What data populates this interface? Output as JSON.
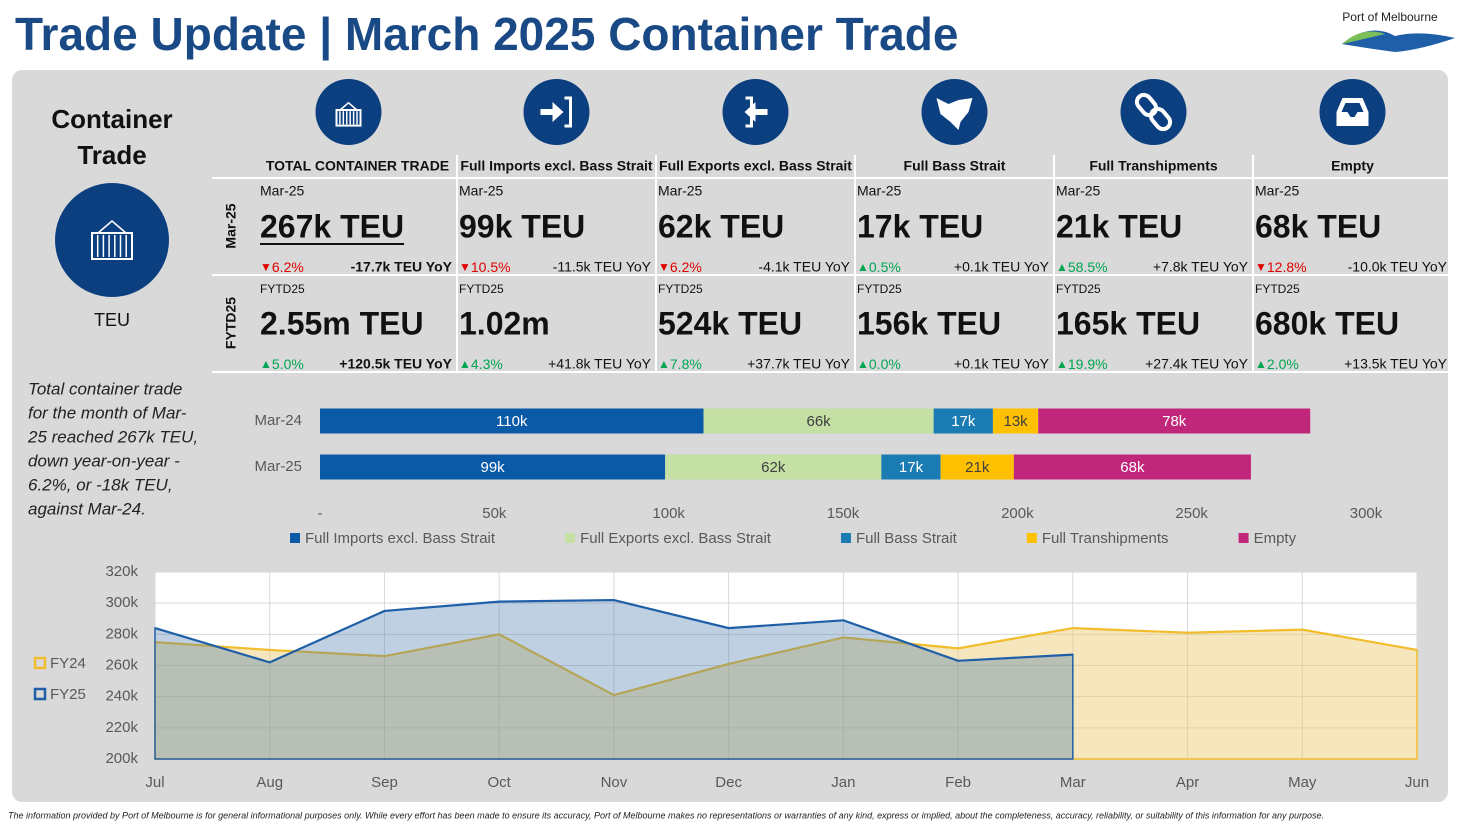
{
  "header": {
    "title": "Trade Update | March 2025 Container Trade",
    "logo": "Port of Melbourne"
  },
  "side": {
    "title_lines": [
      "Container",
      "Trade"
    ],
    "unit": "TEU"
  },
  "row_labels": [
    "Mar-25",
    "FYTD25"
  ],
  "kpis": [
    {
      "title": "TOTAL CONTAINER TRADE",
      "month": {
        "period": "Mar-25",
        "value": "267k TEU",
        "arrow": "▼",
        "change": "6.2%",
        "color": "#e00000",
        "yoy": "-17.7k TEU YoY"
      },
      "ytd": {
        "period": "FYTD25",
        "value": "2.55m TEU",
        "arrow": "▲",
        "change": "5.0%",
        "color": "#00a651",
        "yoy": "+120.5k TEU YoY"
      }
    },
    {
      "title": "Full Imports excl. Bass Strait",
      "month": {
        "period": "Mar-25",
        "value": "99k TEU",
        "arrow": "▼",
        "change": "10.5%",
        "color": "#e00000",
        "yoy": "-11.5k TEU YoY"
      },
      "ytd": {
        "period": "FYTD25",
        "value": "1.02m",
        "arrow": "▲",
        "change": "4.3%",
        "color": "#00a651",
        "yoy": "+41.8k TEU YoY"
      }
    },
    {
      "title": "Full Exports excl. Bass Strait",
      "month": {
        "period": "Mar-25",
        "value": "62k TEU",
        "arrow": "▼",
        "change": "6.2%",
        "color": "#e00000",
        "yoy": "-4.1k TEU YoY"
      },
      "ytd": {
        "period": "FYTD25",
        "value": "524k TEU",
        "arrow": "▲",
        "change": "7.8%",
        "color": "#00a651",
        "yoy": "+37.7k TEU YoY"
      }
    },
    {
      "title": "Full Bass Strait",
      "month": {
        "period": "Mar-25",
        "value": "17k TEU",
        "arrow": "▲",
        "change": "0.5%",
        "color": "#00a651",
        "yoy": "+0.1k TEU YoY"
      },
      "ytd": {
        "period": "FYTD25",
        "value": "156k TEU",
        "arrow": "▲",
        "change": "0.0%",
        "color": "#00a651",
        "yoy": "+0.1k TEU YoY"
      }
    },
    {
      "title": "Full Transhipments",
      "month": {
        "period": "Mar-25",
        "value": "21k TEU",
        "arrow": "▲",
        "change": "58.5%",
        "color": "#00a651",
        "yoy": "+7.8k TEU YoY"
      },
      "ytd": {
        "period": "FYTD25",
        "value": "165k TEU",
        "arrow": "▲",
        "change": "19.9%",
        "color": "#00a651",
        "yoy": "+27.4k TEU YoY"
      }
    },
    {
      "title": "Empty",
      "month": {
        "period": "Mar-25",
        "value": "68k TEU",
        "arrow": "▼",
        "change": "12.8%",
        "color": "#e00000",
        "yoy": "-10.0k TEU YoY"
      },
      "ytd": {
        "period": "FYTD25",
        "value": "680k TEU",
        "arrow": "▲",
        "change": "2.0%",
        "color": "#00a651",
        "yoy": "+13.5k TEU YoY"
      }
    }
  ],
  "description": [
    "Total container trade",
    "for the month of Mar-",
    "25 reached 267k TEU,",
    "down year-on-year -",
    "6.2%, or -18k TEU,",
    "against Mar-24."
  ],
  "chart_data": [
    {
      "type": "bar",
      "orientation": "horizontal",
      "stacked": true,
      "categories": [
        "Mar-24",
        "Mar-25"
      ],
      "series": [
        {
          "name": "Full Imports excl. Bass Strait",
          "color": "#0b5aa8",
          "label_color": "#ffffff",
          "values": [
            110000,
            99000
          ],
          "value_labels": [
            "110k",
            "99k"
          ]
        },
        {
          "name": "Full Exports excl. Bass Strait",
          "color": "#c4e0a4",
          "label_color": "#404040",
          "values": [
            66000,
            62000
          ],
          "value_labels": [
            "66k",
            "62k"
          ]
        },
        {
          "name": "Full Bass Strait",
          "color": "#1b7cb4",
          "label_color": "#ffffff",
          "values": [
            17000,
            17000
          ],
          "value_labels": [
            "17k",
            "17k"
          ]
        },
        {
          "name": "Full Transhipments",
          "color": "#ffc000",
          "label_color": "#404040",
          "values": [
            13000,
            21000
          ],
          "value_labels": [
            "13k",
            "21k"
          ]
        },
        {
          "name": "Empty",
          "color": "#c0267a",
          "label_color": "#ffffff",
          "values": [
            78000,
            68000
          ],
          "value_labels": [
            "78k",
            "68k"
          ]
        }
      ],
      "xlim": [
        0,
        300000
      ],
      "xticks": [
        {
          "value": 0,
          "label": "-"
        },
        {
          "value": 50000,
          "label": "50k"
        },
        {
          "value": 100000,
          "label": "100k"
        },
        {
          "value": 150000,
          "label": "150k"
        },
        {
          "value": 200000,
          "label": "200k"
        },
        {
          "value": 250000,
          "label": "250k"
        },
        {
          "value": 300000,
          "label": "300k"
        }
      ],
      "grid": false,
      "legend": "bottom"
    },
    {
      "type": "area",
      "categories": [
        "Jul",
        "Aug",
        "Sep",
        "Oct",
        "Nov",
        "Dec",
        "Jan",
        "Feb",
        "Mar",
        "Apr",
        "May",
        "Jun"
      ],
      "series": [
        {
          "name": "FY24",
          "color": "#f2bd2c",
          "fill": "rgba(236,200,110,0.45)",
          "values": [
            275000,
            270000,
            266000,
            280000,
            241000,
            261000,
            278000,
            271000,
            284000,
            281000,
            283000,
            270000
          ]
        },
        {
          "name": "FY25",
          "color": "#1f5fa8",
          "fill": "rgba(70,120,170,0.35)",
          "values": [
            284000,
            262000,
            295000,
            301000,
            302000,
            284000,
            289000,
            263000,
            267000,
            null,
            null,
            null
          ]
        }
      ],
      "ylim": [
        200000,
        320000
      ],
      "yticks": [
        {
          "value": 200000,
          "label": "200k"
        },
        {
          "value": 220000,
          "label": "220k"
        },
        {
          "value": 240000,
          "label": "240k"
        },
        {
          "value": 260000,
          "label": "260k"
        },
        {
          "value": 280000,
          "label": "280k"
        },
        {
          "value": 300000,
          "label": "300k"
        },
        {
          "value": 320000,
          "label": "320k"
        }
      ],
      "grid": true,
      "legend": "left"
    }
  ],
  "footer": "The information provided by Port of Melbourne is for general informational purposes only. While every effort has been made to ensure its accuracy, Port of Melbourne makes no representations or warranties of any kind, express or implied, about the completeness, accuracy, reliability, or suitability of this information for any purpose."
}
